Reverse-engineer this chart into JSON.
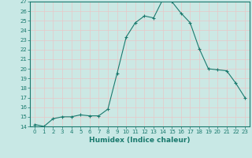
{
  "xlabel": "Humidex (Indice chaleur)",
  "x": [
    0,
    1,
    2,
    3,
    4,
    5,
    6,
    7,
    8,
    9,
    10,
    11,
    12,
    13,
    14,
    15,
    16,
    17,
    18,
    19,
    20,
    21,
    22,
    23
  ],
  "y": [
    14.2,
    14.0,
    14.8,
    15.0,
    15.0,
    15.2,
    15.1,
    15.1,
    15.8,
    19.5,
    23.3,
    24.8,
    25.5,
    25.3,
    27.2,
    27.0,
    25.8,
    24.8,
    22.1,
    20.0,
    19.9,
    19.8,
    18.5,
    17.0
  ],
  "ylim": [
    14,
    27
  ],
  "yticks": [
    14,
    15,
    16,
    17,
    18,
    19,
    20,
    21,
    22,
    23,
    24,
    25,
    26,
    27
  ],
  "line_color": "#1a7a6e",
  "marker": "+",
  "bg_color": "#c8e8e5",
  "plot_bg_color": "#cce8e4",
  "grid_color": "#e8c8c8",
  "figsize": [
    3.2,
    2.0
  ],
  "dpi": 100
}
